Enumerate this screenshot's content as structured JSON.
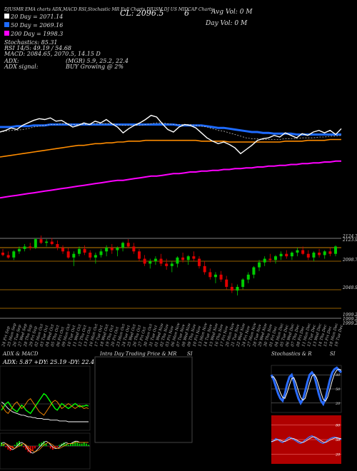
{
  "header": {
    "topline": [
      "DJUSMR",
      "EMA charts",
      "ADX,MACD",
      "RSI,Stochastic",
      "MR",
      "Full Charts",
      "DJUSM",
      "DJ US MIDCAP",
      "Charts"
    ],
    "close_label": "CL: 2096.5",
    "change_label": "6",
    "avg_vol_label": "Avg Vol: 0 M",
    "day_vol_label": "Day Vol: 0 M",
    "ma20": "20 Day = 2071.14",
    "ma50": "50 Day = 2069.16",
    "ma200": "200 Day = 1998.3",
    "stoch_line": "Stochastics: 85.31",
    "rsi_line": "RSI 14/5: 49.19 / 54.68",
    "macd_line": "MACD: 2084.65, 2070.5, 14.15 D",
    "adx_line": "ADX:",
    "adx_values": "(MGR) 5.9, 25.2, 22.4",
    "adx_signal_label": "ADX signal:",
    "adx_signal": "BUY Growing @ 2%"
  },
  "colors": {
    "ma20": "#ffffff",
    "ma50": "#1e6bff",
    "ma200": "#ff8c00",
    "ma_long": "#ff00ff",
    "up": "#00cc00",
    "down": "#e00000",
    "price": "#ffffff",
    "bg_red": "#b00000",
    "stoch_blue": "#2a6cff"
  },
  "chart_data": [
    {
      "type": "line",
      "name": "main",
      "x_labels": [
        "24 Fri Sep",
        "25 Mon Sep",
        "26 Tue Sep",
        "27 Wed Sep",
        "28 Thu Sep",
        "29 Fri Sep",
        "02 Mon Oct",
        "03 Tue Oct",
        "04 Wed Oct",
        "05 Thu Oct",
        "06 Fri Oct",
        "09 Mon Oct",
        "10 Tue Oct",
        "11 Wed Oct",
        "12 Thu Oct",
        "13 Fri Oct",
        "16 Mon Oct",
        "17 Tue Oct",
        "18 Wed Oct",
        "19 Thu Oct",
        "20 Fri Oct",
        "23 Mon Oct",
        "24 Tue Oct",
        "25 Wed Oct",
        "26 Thu Oct",
        "27 Fri Oct",
        "30 Mon Oct",
        "31 Tue Oct",
        "01 Wed Nov",
        "02 Thu Nov",
        "03 Fri Nov",
        "06 Mon Nov",
        "07 Tue Nov",
        "08 Wed Nov",
        "09 Thu Nov",
        "10 Fri Nov",
        "13 Mon Nov",
        "14 Tue Nov",
        "15 Wed Nov",
        "16 Thu Nov",
        "17 Fri Nov",
        "20 Mon Nov",
        "21 Tue Nov",
        "22 Wed Nov",
        "24 Fri Nov",
        "27 Mon Nov",
        "28 Tue Nov",
        "29 Wed Nov",
        "30 Thu Nov",
        "01 Fri Dec",
        "04 Mon Dec",
        "05 Tue Dec",
        "06 Wed Dec",
        "07 Thu Dec",
        "08 Fri Dec",
        "11 Mon Dec",
        "12 Tue Dec",
        "13 Wed Dec",
        "14 Thu Dec",
        "15 Fri Dec",
        "18 Mon Dec",
        "19 Tue Dec"
      ],
      "price": [
        2110,
        2112,
        2115,
        2113,
        2118,
        2121,
        2124,
        2126,
        2125,
        2127,
        2123,
        2124,
        2120,
        2116,
        2118,
        2121,
        2119,
        2123,
        2121,
        2125,
        2120,
        2116,
        2109,
        2114,
        2118,
        2121,
        2125,
        2130,
        2128,
        2120,
        2113,
        2110,
        2116,
        2119,
        2118,
        2115,
        2109,
        2103,
        2099,
        2096,
        2098,
        2095,
        2091,
        2084,
        2089,
        2094,
        2100,
        2102,
        2103,
        2106,
        2104,
        2109,
        2106,
        2103,
        2108,
        2106,
        2110,
        2112,
        2109,
        2112,
        2107,
        2114
      ],
      "ema20": [
        2110,
        2111,
        2112,
        2112,
        2113,
        2114,
        2116,
        2117,
        2118,
        2119,
        2119,
        2120,
        2120,
        2119,
        2119,
        2119,
        2119,
        2120,
        2120,
        2120,
        2120,
        2119,
        2118,
        2118,
        2118,
        2118,
        2119,
        2120,
        2121,
        2121,
        2120,
        2119,
        2119,
        2119,
        2119,
        2118,
        2117,
        2116,
        2114,
        2112,
        2111,
        2109,
        2107,
        2105,
        2103,
        2102,
        2102,
        2101,
        2101,
        2101,
        2101,
        2102,
        2102,
        2102,
        2103,
        2103,
        2103,
        2104,
        2104,
        2105,
        2105,
        2106
      ],
      "ema50": [
        2116,
        2116,
        2116,
        2117,
        2117,
        2117,
        2118,
        2118,
        2118,
        2119,
        2119,
        2119,
        2119,
        2119,
        2119,
        2119,
        2119,
        2119,
        2119,
        2119,
        2119,
        2119,
        2119,
        2119,
        2119,
        2119,
        2119,
        2119,
        2119,
        2119,
        2119,
        2119,
        2118,
        2118,
        2118,
        2118,
        2118,
        2117,
        2116,
        2115,
        2115,
        2114,
        2113,
        2112,
        2111,
        2110,
        2110,
        2109,
        2109,
        2108,
        2108,
        2108,
        2108,
        2107,
        2107,
        2107,
        2107,
        2107,
        2107,
        2107,
        2107,
        2107
      ],
      "ema200": [
        2080,
        2081,
        2082,
        2083,
        2084,
        2085,
        2086,
        2087,
        2088,
        2089,
        2090,
        2091,
        2092,
        2093,
        2094,
        2094,
        2095,
        2096,
        2096,
        2097,
        2097,
        2098,
        2098,
        2099,
        2099,
        2099,
        2100,
        2100,
        2100,
        2100,
        2100,
        2100,
        2100,
        2100,
        2100,
        2100,
        2099,
        2099,
        2099,
        2099,
        2099,
        2098,
        2098,
        2098,
        2098,
        2098,
        2098,
        2098,
        2098,
        2098,
        2098,
        2099,
        2099,
        2099,
        2099,
        2100,
        2100,
        2100,
        2100,
        2101,
        2101,
        2101
      ],
      "ema_long": [
        2031,
        2032,
        2033,
        2034,
        2035,
        2036,
        2037,
        2038,
        2039,
        2040,
        2041,
        2042,
        2043,
        2044,
        2045,
        2046,
        2047,
        2048,
        2049,
        2050,
        2051,
        2052,
        2052,
        2053,
        2054,
        2055,
        2056,
        2057,
        2057,
        2058,
        2059,
        2060,
        2060,
        2061,
        2062,
        2062,
        2063,
        2063,
        2064,
        2064,
        2065,
        2065,
        2066,
        2066,
        2067,
        2067,
        2068,
        2068,
        2069,
        2069,
        2070,
        2070,
        2071,
        2071,
        2072,
        2072,
        2073,
        2073,
        2074,
        2074,
        2075,
        2075
      ],
      "ylim": [
        2020,
        2140
      ]
    },
    {
      "type": "candlestick",
      "name": "candles",
      "right_labels": [
        "2124.73",
        "2123.94",
        "2098.72",
        "2048.99",
        "1999.26",
        "1999.26",
        "1999.26"
      ],
      "ohlc": [
        [
          2102,
          2108,
          2096,
          2098
        ],
        [
          2098,
          2104,
          2092,
          2094
        ],
        [
          2094,
          2106,
          2090,
          2104
        ],
        [
          2104,
          2112,
          2100,
          2108
        ],
        [
          2108,
          2116,
          2104,
          2112
        ],
        [
          2112,
          2118,
          2106,
          2110
        ],
        [
          2110,
          2126,
          2108,
          2124
        ],
        [
          2124,
          2130,
          2116,
          2118
        ],
        [
          2118,
          2124,
          2112,
          2120
        ],
        [
          2120,
          2126,
          2114,
          2116
        ],
        [
          2116,
          2122,
          2106,
          2110
        ],
        [
          2110,
          2114,
          2100,
          2104
        ],
        [
          2104,
          2110,
          2092,
          2094
        ],
        [
          2094,
          2104,
          2080,
          2100
        ],
        [
          2100,
          2112,
          2096,
          2108
        ],
        [
          2108,
          2114,
          2098,
          2102
        ],
        [
          2102,
          2106,
          2090,
          2094
        ],
        [
          2094,
          2102,
          2084,
          2098
        ],
        [
          2098,
          2108,
          2094,
          2104
        ],
        [
          2104,
          2114,
          2096,
          2110
        ],
        [
          2110,
          2116,
          2100,
          2106
        ],
        [
          2106,
          2112,
          2096,
          2110
        ],
        [
          2110,
          2120,
          2104,
          2118
        ],
        [
          2118,
          2124,
          2110,
          2112
        ],
        [
          2112,
          2118,
          2100,
          2104
        ],
        [
          2104,
          2108,
          2088,
          2092
        ],
        [
          2092,
          2098,
          2080,
          2084
        ],
        [
          2084,
          2092,
          2076,
          2088
        ],
        [
          2088,
          2096,
          2082,
          2092
        ],
        [
          2092,
          2100,
          2080,
          2084
        ],
        [
          2084,
          2092,
          2074,
          2080
        ],
        [
          2080,
          2088,
          2070,
          2084
        ],
        [
          2084,
          2096,
          2078,
          2094
        ],
        [
          2094,
          2102,
          2086,
          2090
        ],
        [
          2090,
          2098,
          2082,
          2096
        ],
        [
          2096,
          2104,
          2088,
          2092
        ],
        [
          2092,
          2096,
          2076,
          2080
        ],
        [
          2080,
          2088,
          2066,
          2070
        ],
        [
          2070,
          2076,
          2058,
          2062
        ],
        [
          2062,
          2070,
          2052,
          2066
        ],
        [
          2066,
          2072,
          2054,
          2058
        ],
        [
          2058,
          2064,
          2042,
          2046
        ],
        [
          2046,
          2052,
          2036,
          2040
        ],
        [
          2040,
          2050,
          2032,
          2046
        ],
        [
          2046,
          2060,
          2042,
          2058
        ],
        [
          2058,
          2070,
          2052,
          2066
        ],
        [
          2066,
          2080,
          2060,
          2078
        ],
        [
          2078,
          2090,
          2072,
          2086
        ],
        [
          2086,
          2096,
          2080,
          2092
        ],
        [
          2092,
          2100,
          2086,
          2090
        ],
        [
          2090,
          2098,
          2084,
          2096
        ],
        [
          2096,
          2104,
          2090,
          2100
        ],
        [
          2100,
          2106,
          2092,
          2096
        ],
        [
          2096,
          2104,
          2090,
          2102
        ],
        [
          2102,
          2110,
          2096,
          2106
        ],
        [
          2106,
          2112,
          2098,
          2100
        ],
        [
          2100,
          2106,
          2090,
          2094
        ],
        [
          2094,
          2104,
          2088,
          2102
        ],
        [
          2102,
          2108,
          2094,
          2098
        ],
        [
          2098,
          2106,
          2092,
          2104
        ],
        [
          2104,
          2110,
          2096,
          2100
        ],
        [
          2100,
          2114,
          2096,
          2112
        ]
      ],
      "ylim": [
        1990,
        2130
      ]
    },
    {
      "type": "line",
      "name": "adx_macd_top",
      "title": "ADX & MACD",
      "subtitle": "ADX: 5.87 +DY: 25.19 -DY: 22.4",
      "series": [
        {
          "name": "ADX",
          "values": [
            30,
            28,
            25,
            22,
            20,
            18,
            17,
            16,
            15,
            14,
            14,
            13,
            12,
            12,
            11,
            11,
            10,
            10,
            10,
            9,
            9,
            9,
            8,
            8,
            8,
            8,
            7,
            7,
            7,
            7,
            6,
            6,
            6,
            6,
            6,
            6,
            6,
            6,
            6,
            6
          ]
        },
        {
          "name": "+DY",
          "values": [
            20,
            24,
            28,
            30,
            26,
            22,
            20,
            18,
            22,
            26,
            24,
            20,
            18,
            16,
            20,
            24,
            28,
            32,
            36,
            40,
            38,
            34,
            30,
            26,
            22,
            20,
            24,
            28,
            26,
            24,
            22,
            24,
            26,
            28,
            26,
            24,
            25,
            25,
            26,
            25
          ]
        },
        {
          "name": "-DY",
          "values": [
            26,
            22,
            18,
            16,
            20,
            24,
            28,
            30,
            26,
            22,
            24,
            28,
            32,
            34,
            30,
            26,
            22,
            18,
            16,
            14,
            18,
            22,
            26,
            30,
            32,
            30,
            26,
            22,
            24,
            26,
            28,
            26,
            24,
            22,
            24,
            26,
            24,
            22,
            23,
            22
          ]
        }
      ],
      "ylim": [
        0,
        50
      ]
    },
    {
      "type": "bar",
      "name": "macd_hist",
      "values": [
        3,
        2,
        -1,
        -3,
        -4,
        -2,
        1,
        3,
        4,
        2,
        -1,
        -3,
        -5,
        -6,
        -4,
        -2,
        0,
        2,
        3,
        4,
        2,
        0,
        -2,
        -3,
        -2,
        -1,
        1,
        2,
        3,
        2,
        1,
        2,
        3,
        4,
        3,
        2,
        2,
        3,
        2,
        1
      ],
      "macd": [
        2,
        3,
        2,
        0,
        -2,
        -3,
        -2,
        0,
        2,
        3,
        2,
        0,
        -3,
        -5,
        -6,
        -5,
        -3,
        -1,
        1,
        3,
        4,
        3,
        1,
        -1,
        -2,
        -2,
        -1,
        1,
        2,
        3,
        2,
        2,
        3,
        4,
        4,
        3,
        3,
        3,
        3,
        3
      ],
      "signal": [
        1,
        1,
        2,
        1,
        0,
        -1,
        -2,
        -1,
        0,
        1,
        2,
        1,
        -1,
        -3,
        -4,
        -5,
        -4,
        -3,
        -1,
        1,
        2,
        3,
        2,
        1,
        -1,
        -2,
        -2,
        -1,
        0,
        1,
        2,
        2,
        2,
        3,
        3,
        3,
        3,
        3,
        3,
        3
      ],
      "ylim": [
        -8,
        8
      ]
    },
    {
      "type": "line",
      "name": "stochastics",
      "title": "Stochastics & R",
      "series": [
        {
          "name": "K",
          "values": [
            80,
            70,
            55,
            40,
            30,
            25,
            40,
            60,
            75,
            80,
            65,
            45,
            30,
            20,
            28,
            45,
            65,
            80,
            85,
            78,
            60,
            40,
            25,
            18,
            30,
            50,
            70,
            85,
            92,
            95,
            90,
            85
          ]
        },
        {
          "name": "D",
          "values": [
            75,
            76,
            68,
            55,
            42,
            32,
            30,
            42,
            58,
            72,
            74,
            62,
            46,
            32,
            26,
            30,
            46,
            63,
            77,
            81,
            74,
            59,
            42,
            28,
            24,
            33,
            50,
            68,
            82,
            90,
            92,
            90
          ]
        }
      ],
      "right_labels": [
        "80",
        "50",
        "20"
      ],
      "ylim": [
        0,
        100
      ]
    },
    {
      "type": "line",
      "name": "rsi_lower",
      "series": [
        {
          "name": "RSI",
          "values": [
            45,
            48,
            52,
            50,
            46,
            44,
            47,
            52,
            55,
            53,
            50,
            47,
            44,
            42,
            45,
            49,
            53,
            56,
            58,
            55,
            51,
            47,
            44,
            42,
            45,
            49,
            52,
            54,
            55,
            54,
            52,
            50
          ]
        },
        {
          "name": "MR",
          "values": [
            46,
            47,
            49,
            50,
            49,
            47,
            46,
            48,
            51,
            53,
            52,
            50,
            47,
            45,
            44,
            46,
            49,
            52,
            55,
            56,
            54,
            51,
            48,
            45,
            44,
            46,
            49,
            51,
            53,
            54,
            53,
            52
          ]
        }
      ],
      "right_labels": [
        "80",
        "50",
        "20"
      ],
      "ylim": [
        0,
        100
      ]
    },
    {
      "type": "line",
      "name": "intraday",
      "title": "Intra Day Trading Price & MR",
      "series": []
    }
  ],
  "panels": {
    "si_label_1": "SI",
    "si_label_2": "SI"
  }
}
